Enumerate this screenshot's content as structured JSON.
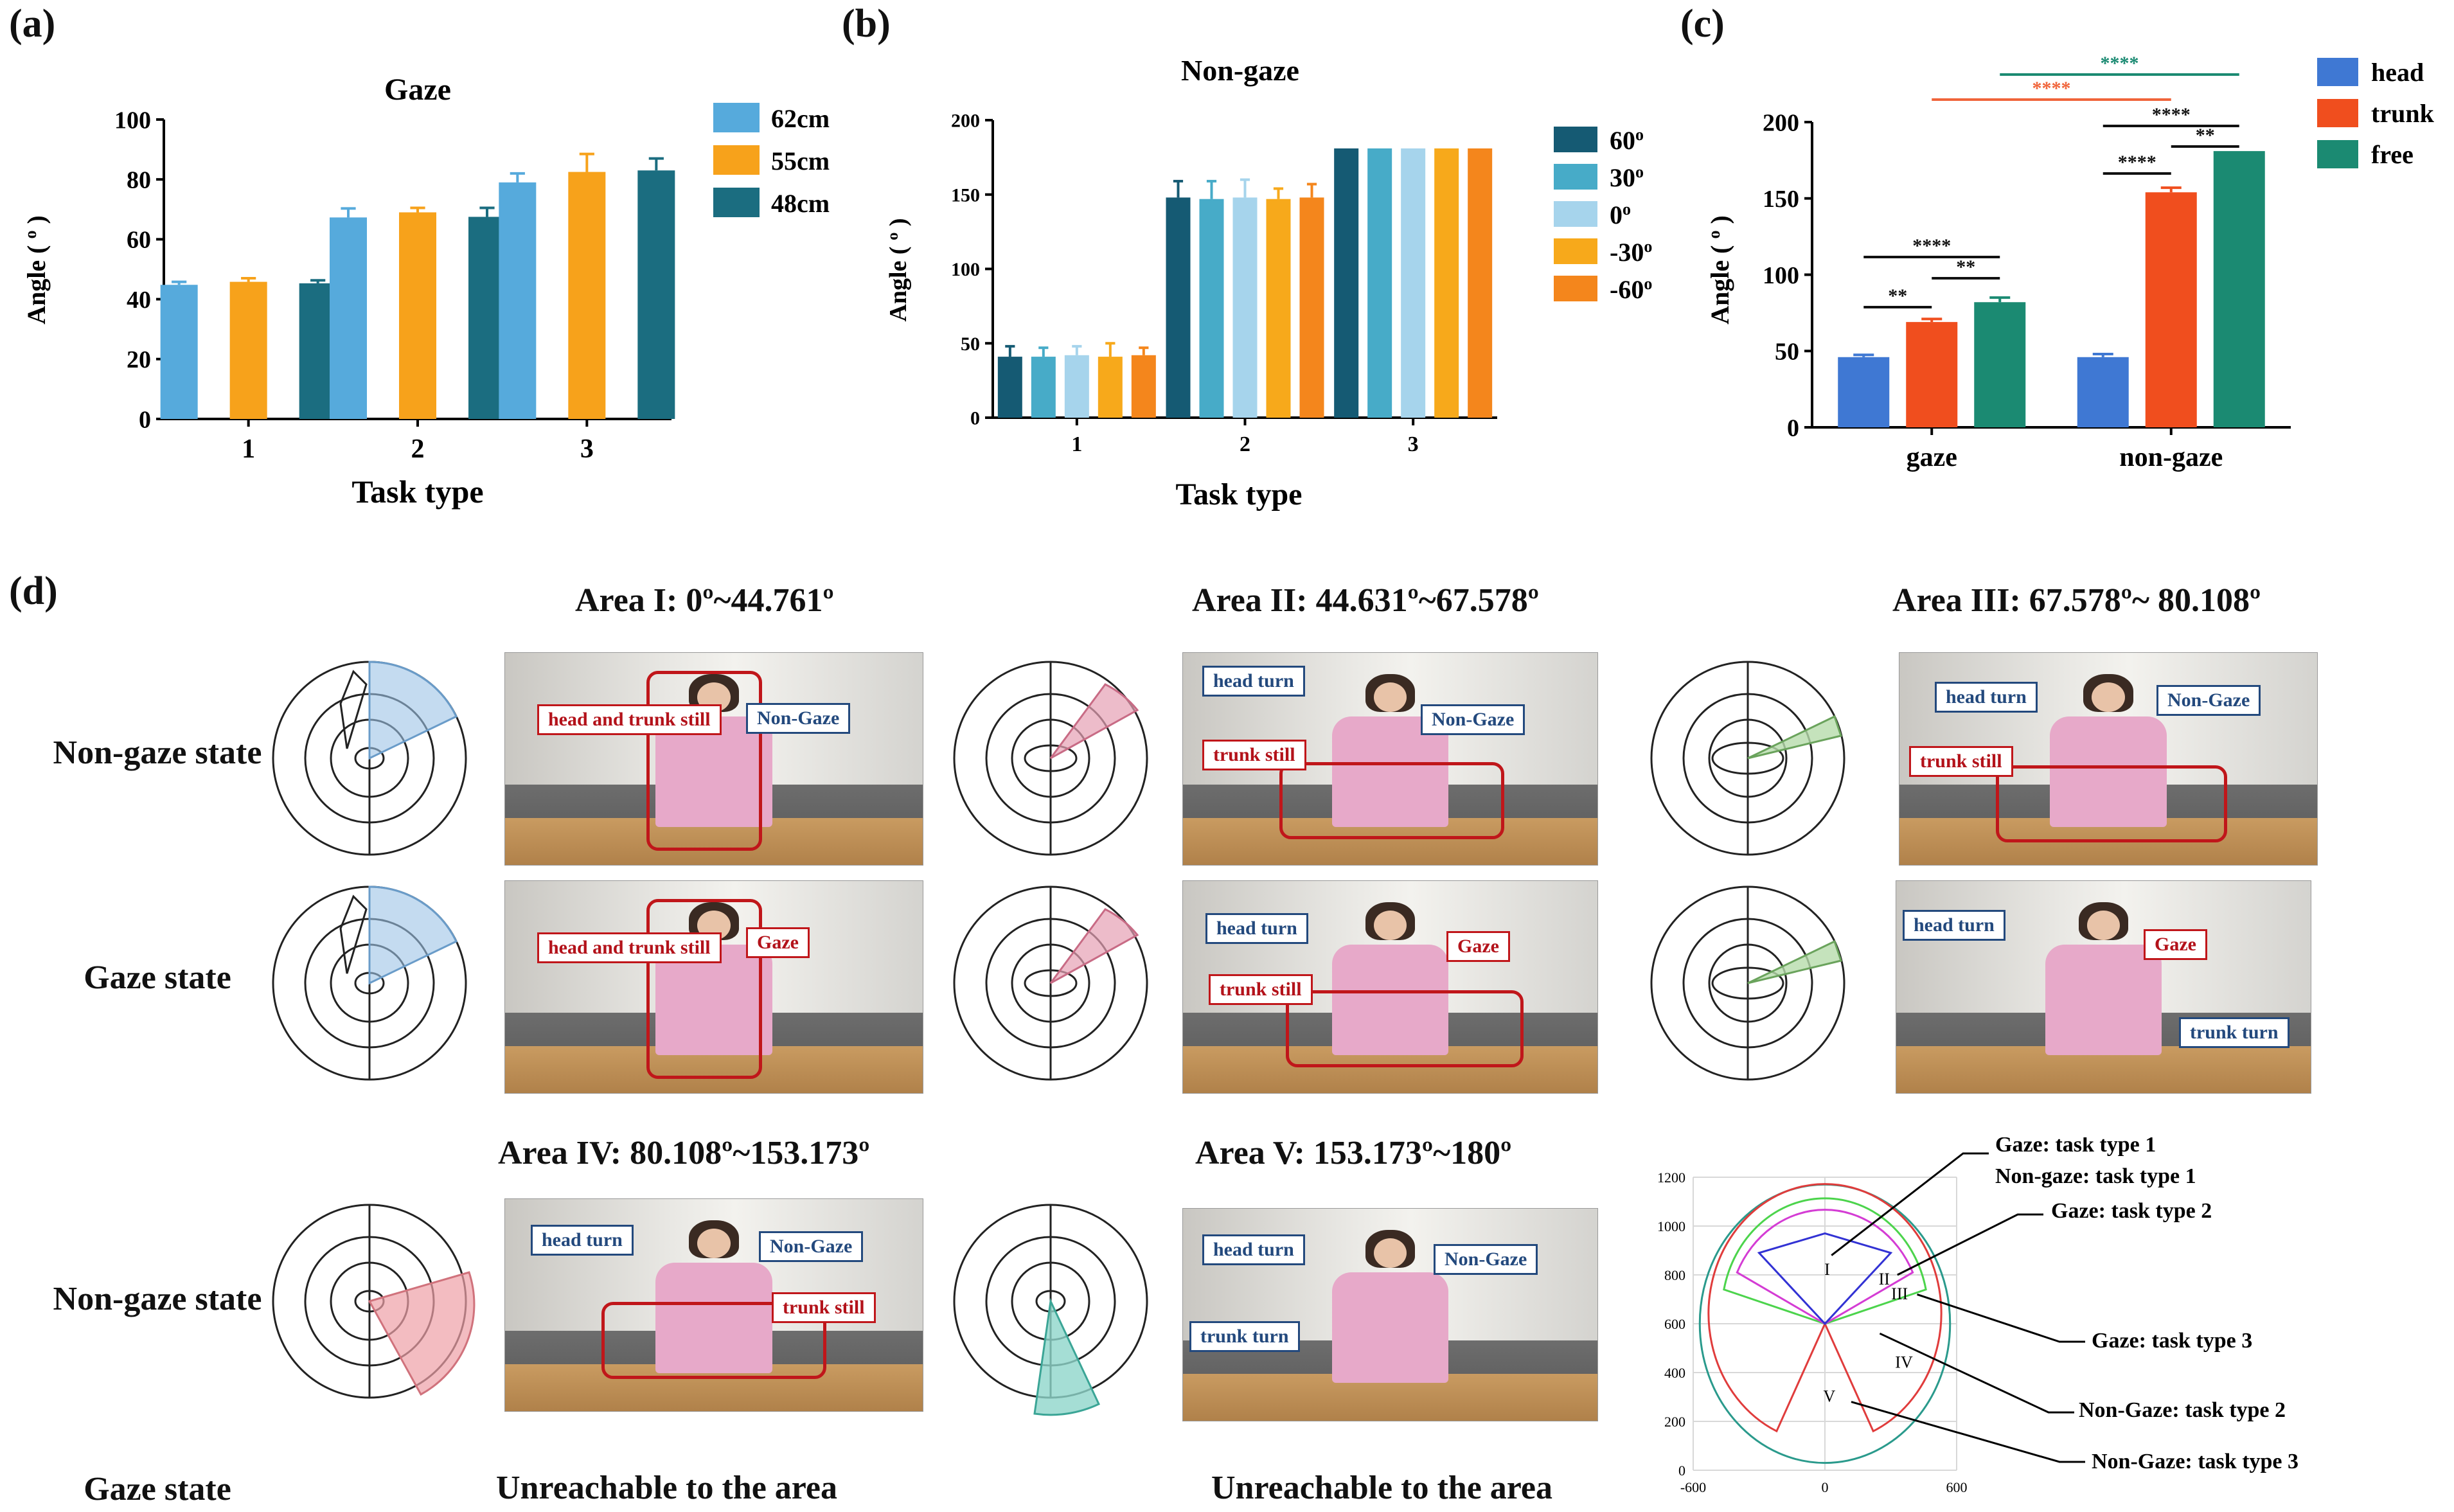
{
  "panels": {
    "a": "(a)",
    "b": "(b)",
    "c": "(c)",
    "d": "(d)"
  },
  "chart_data": [
    {
      "id": "a",
      "type": "bar",
      "title": "Gaze",
      "xlabel": "Task type",
      "ylabel": "Angle ( o )",
      "categories": [
        "1",
        "2",
        "3"
      ],
      "ylim": [
        0,
        100
      ],
      "yticks": [
        0,
        20,
        40,
        60,
        80,
        100
      ],
      "series": [
        {
          "name": "62cm",
          "color": "#56aadc",
          "values": [
            44.8,
            67.3,
            79.0
          ],
          "errors": [
            1.0,
            3.0,
            3.0
          ]
        },
        {
          "name": "55cm",
          "color": "#f7a21b",
          "values": [
            45.8,
            69.0,
            82.5
          ],
          "errors": [
            1.2,
            1.5,
            6.0
          ]
        },
        {
          "name": "48cm",
          "color": "#1b6d80",
          "values": [
            45.3,
            67.5,
            83.0
          ],
          "errors": [
            1.0,
            3.0,
            4.0
          ]
        }
      ]
    },
    {
      "id": "b",
      "type": "bar",
      "title": "Non-gaze",
      "xlabel": "Task type",
      "ylabel": "Angle ( o )",
      "categories": [
        "1",
        "2",
        "3"
      ],
      "ylim": [
        0,
        200
      ],
      "yticks": [
        0,
        50,
        100,
        150,
        200
      ],
      "series": [
        {
          "name": "60o",
          "color": "#155a73",
          "values": [
            41,
            148,
            181
          ],
          "errors": [
            7,
            11,
            0
          ]
        },
        {
          "name": "30o",
          "color": "#47abc8",
          "values": [
            41,
            147,
            181
          ],
          "errors": [
            6,
            12,
            0
          ]
        },
        {
          "name": "0o",
          "color": "#a6d4ec",
          "values": [
            42,
            148,
            181
          ],
          "errors": [
            6,
            12,
            0
          ]
        },
        {
          "name": "-30o",
          "color": "#f7a91b",
          "values": [
            41,
            147,
            181
          ],
          "errors": [
            9,
            7,
            0
          ]
        },
        {
          "name": "-60o",
          "color": "#f4861c",
          "values": [
            42,
            148,
            181
          ],
          "errors": [
            5,
            9,
            0
          ]
        }
      ]
    },
    {
      "id": "c",
      "type": "bar",
      "title": "",
      "xlabel": "",
      "ylabel": "Angle ( o )",
      "categories": [
        "gaze",
        "non-gaze"
      ],
      "ylim": [
        0,
        200
      ],
      "yticks": [
        0,
        50,
        100,
        150,
        200
      ],
      "series": [
        {
          "name": "head",
          "color": "#3f78d3",
          "values": [
            46,
            46
          ],
          "errors": [
            1.5,
            2
          ]
        },
        {
          "name": "trunk",
          "color": "#f04e1e",
          "values": [
            69,
            154
          ],
          "errors": [
            2,
            3
          ]
        },
        {
          "name": "free",
          "color": "#1b8a72",
          "values": [
            82,
            181
          ],
          "errors": [
            3,
            0
          ]
        }
      ],
      "significance": [
        {
          "label": "**",
          "from": "gaze-head",
          "to": "gaze-trunk",
          "color": "#111"
        },
        {
          "label": "**",
          "from": "gaze-trunk",
          "to": "gaze-free",
          "color": "#111"
        },
        {
          "label": "****",
          "from": "gaze-head",
          "to": "gaze-free",
          "color": "#111"
        },
        {
          "label": "****",
          "from": "non-gaze-head",
          "to": "non-gaze-trunk",
          "color": "#111"
        },
        {
          "label": "**",
          "from": "non-gaze-trunk",
          "to": "non-gaze-free",
          "color": "#111"
        },
        {
          "label": "****",
          "from": "non-gaze-head",
          "to": "non-gaze-free",
          "color": "#111"
        },
        {
          "label": "****",
          "from": "gaze-trunk",
          "to": "non-gaze-trunk",
          "color": "#f0643a"
        },
        {
          "label": "****",
          "from": "gaze-free",
          "to": "non-gaze-free",
          "color": "#1b8a72"
        }
      ]
    },
    {
      "id": "d-plot",
      "type": "line",
      "xlim": [
        -600,
        600
      ],
      "ylim": [
        0,
        1200
      ],
      "xticks": [
        -600,
        0,
        600
      ],
      "yticks": [
        0,
        200,
        400,
        600,
        800,
        1000,
        1200
      ],
      "region_labels": [
        "I",
        "II",
        "III",
        "IV",
        "V"
      ],
      "annotations": [
        "Gaze: task type 1",
        "Non-gaze: task type 1",
        "Gaze: task type 2",
        "Gaze: task type 3",
        "Non-Gaze: task type 2",
        "Non-Gaze: task type 3"
      ]
    }
  ],
  "areas": {
    "area1": "Area I:  0º~44.761º",
    "area2": "Area II:  44.631º~67.578º",
    "area3": "Area III:  67.578º~ 80.108º",
    "area4": "Area IV:  80.108º~153.173º",
    "area5": "Area V:  153.173º~180º"
  },
  "states": {
    "nongaze1": "Non-gaze state",
    "gaze1": "Gaze state",
    "nongaze2": "Non-gaze state",
    "gaze2": "Gaze state"
  },
  "unreachable": {
    "u1": "Unreachable to the area",
    "u2": "Unreachable to the area"
  },
  "photo_tags": {
    "head_and_trunk_still_1": "head and trunk still",
    "non_gaze": "Non-Gaze",
    "gaze": "Gaze",
    "head_turn": "head turn",
    "trunk_still": "trunk still",
    "trunk_turn": "trunk turn"
  }
}
